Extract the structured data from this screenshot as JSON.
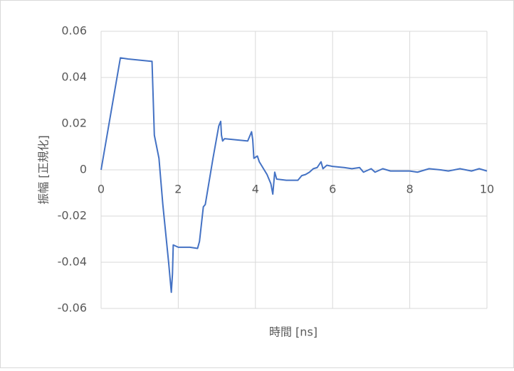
{
  "chart_data": {
    "type": "line",
    "xlabel": "時間 [ns]",
    "ylabel": "振幅 [正規化]",
    "x": [
      0,
      0.5,
      0.7,
      1.0,
      1.3,
      1.32,
      1.38,
      1.5,
      1.6,
      1.75,
      1.82,
      1.85,
      1.87,
      2.0,
      2.3,
      2.5,
      2.55,
      2.65,
      2.7,
      2.9,
      3.05,
      3.1,
      3.12,
      3.15,
      3.2,
      3.5,
      3.8,
      3.9,
      3.93,
      3.96,
      4.05,
      4.1,
      4.3,
      4.4,
      4.45,
      4.5,
      4.55,
      4.8,
      5.1,
      5.2,
      5.3,
      5.4,
      5.5,
      5.6,
      5.7,
      5.75,
      5.85,
      6.0,
      6.3,
      6.5,
      6.7,
      6.8,
      7.0,
      7.1,
      7.3,
      7.5,
      8.0,
      8.2,
      8.5,
      8.8,
      9.0,
      9.3,
      9.6,
      9.8,
      10.0
    ],
    "values": [
      0,
      0.0485,
      0.048,
      0.0475,
      0.047,
      0.047,
      0.015,
      0.005,
      -0.015,
      -0.04,
      -0.053,
      -0.045,
      -0.0325,
      -0.0335,
      -0.0335,
      -0.034,
      -0.031,
      -0.016,
      -0.015,
      0.005,
      0.019,
      0.021,
      0.015,
      0.0125,
      0.0135,
      0.013,
      0.0125,
      0.0165,
      0.013,
      0.005,
      0.006,
      0.0035,
      -0.002,
      -0.006,
      -0.0105,
      -0.001,
      -0.004,
      -0.0045,
      -0.0045,
      -0.0025,
      -0.002,
      -0.001,
      0.0005,
      0.001,
      0.0035,
      0.0005,
      0.002,
      0.0015,
      0.001,
      0.0005,
      0.001,
      -0.001,
      0.0005,
      -0.001,
      0.0005,
      -0.0005,
      -0.0005,
      -0.001,
      0.0005,
      0,
      -0.0005,
      0.0005,
      -0.0005,
      0.0005,
      -0.0005
    ],
    "color": "#4472c4",
    "xlim": [
      0,
      10
    ],
    "xticks": [
      0,
      2,
      4,
      6,
      8,
      10
    ],
    "ylim": [
      -0.06,
      0.06
    ],
    "yticks": [
      -0.06,
      -0.04,
      -0.02,
      0,
      0.02,
      0.04,
      0.06
    ],
    "grid": true
  }
}
